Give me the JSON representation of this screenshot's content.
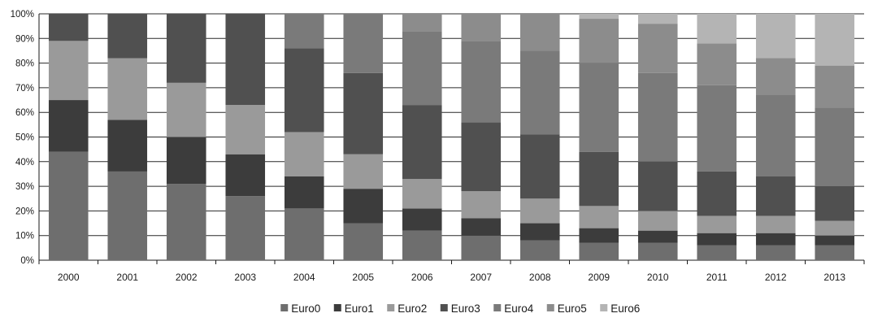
{
  "chart_data": {
    "type": "bar",
    "stacked": true,
    "percent": true,
    "title": "",
    "xlabel": "",
    "ylabel": "",
    "ylim": [
      0,
      100
    ],
    "yticks": [
      "0%",
      "10%",
      "20%",
      "30%",
      "40%",
      "50%",
      "60%",
      "70%",
      "80%",
      "90%",
      "100%"
    ],
    "categories": [
      "2000",
      "2001",
      "2002",
      "2003",
      "2004",
      "2005",
      "2006",
      "2007",
      "2008",
      "2009",
      "2010",
      "2011",
      "2012",
      "2013"
    ],
    "legend_position": "bottom",
    "grid": true,
    "series": [
      {
        "name": "Euro0",
        "color": "#6e6e6e",
        "values": [
          44,
          36,
          31,
          26,
          21,
          15,
          12,
          10,
          8,
          7,
          7,
          6,
          6,
          6
        ]
      },
      {
        "name": "Euro1",
        "color": "#3c3c3c",
        "values": [
          21,
          21,
          19,
          17,
          13,
          14,
          9,
          7,
          7,
          6,
          5,
          5,
          5,
          4
        ]
      },
      {
        "name": "Euro2",
        "color": "#9a9a9a",
        "values": [
          24,
          25,
          22,
          20,
          18,
          14,
          12,
          11,
          10,
          9,
          8,
          7,
          7,
          6
        ]
      },
      {
        "name": "Euro3",
        "color": "#505050",
        "values": [
          11,
          18,
          28,
          37,
          34,
          33,
          30,
          28,
          26,
          22,
          20,
          18,
          16,
          14
        ]
      },
      {
        "name": "Euro4",
        "color": "#7a7a7a",
        "values": [
          0,
          0,
          0,
          0,
          14,
          24,
          30,
          33,
          34,
          36,
          36,
          35,
          33,
          32
        ]
      },
      {
        "name": "Euro5",
        "color": "#8c8c8c",
        "values": [
          0,
          0,
          0,
          0,
          0,
          0,
          7,
          11,
          15,
          18,
          20,
          17,
          15,
          17
        ]
      },
      {
        "name": "Euro6",
        "color": "#b4b4b4",
        "values": [
          0,
          0,
          0,
          0,
          0,
          0,
          0,
          0,
          0,
          2,
          4,
          12,
          18,
          21
        ]
      }
    ]
  }
}
